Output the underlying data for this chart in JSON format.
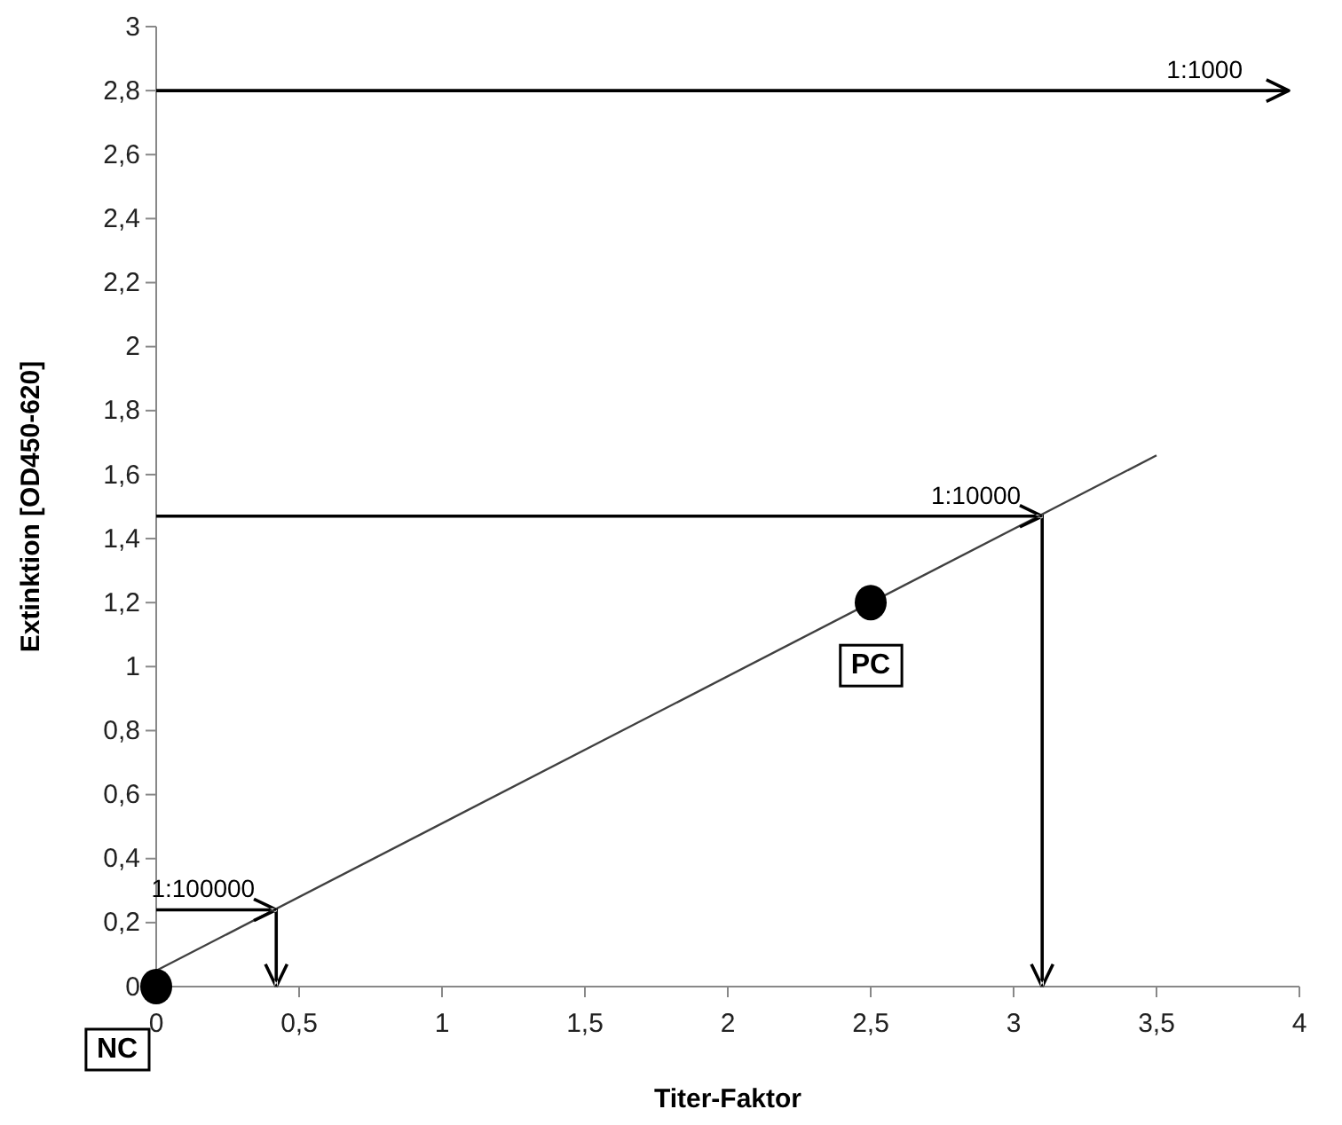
{
  "chart_data": {
    "type": "line",
    "xlabel": "Titer-Faktor",
    "ylabel": "Extinktion [OD450-620]",
    "xlim": [
      0,
      4
    ],
    "xticks": [
      0,
      {
        "value": 0.5,
        "label": "0,5"
      },
      1,
      {
        "value": 1.5,
        "label": "1,5"
      },
      2,
      {
        "value": 2.5,
        "label": "2,5"
      },
      3,
      {
        "value": 3.5,
        "label": "3,5"
      },
      4
    ],
    "ylim": [
      0,
      3
    ],
    "yticks": [
      0,
      {
        "value": 0.2,
        "label": "0,2"
      },
      {
        "value": 0.4,
        "label": "0,4"
      },
      {
        "value": 0.6,
        "label": "0,6"
      },
      {
        "value": 0.8,
        "label": "0,8"
      },
      1,
      {
        "value": 1.2,
        "label": "1,2"
      },
      {
        "value": 1.4,
        "label": "1,4"
      },
      {
        "value": 1.6,
        "label": "1,6"
      },
      {
        "value": 1.8,
        "label": "1,8"
      },
      2,
      {
        "value": 2.2,
        "label": "2,2"
      },
      {
        "value": 2.4,
        "label": "2,4"
      },
      {
        "value": 2.6,
        "label": "2,6"
      },
      {
        "value": 2.8,
        "label": "2,8"
      },
      3
    ],
    "grid": false,
    "series": [
      {
        "color": "#404040",
        "x": [
          0,
          3.5
        ],
        "values": [
          0.05,
          1.66
        ]
      },
      {
        "type": "scatter",
        "color": "#000000",
        "x": [
          0,
          2.5
        ],
        "values": [
          0,
          1.2
        ],
        "marker": "circle"
      }
    ],
    "ref_lines": [
      {
        "axis": "y",
        "value": 2.8,
        "color": "#000000"
      }
    ],
    "annotations": [
      "1:1000",
      {
        "text": "1:10000",
        "x": 3.1,
        "y": 1.47
      },
      {
        "text": "1:100000",
        "x": 0.42,
        "y": 0.24
      },
      {
        "text": "NC",
        "x": 0,
        "y": 0
      },
      {
        "text": "PC",
        "x": 2.5,
        "y": 1.2
      }
    ]
  }
}
